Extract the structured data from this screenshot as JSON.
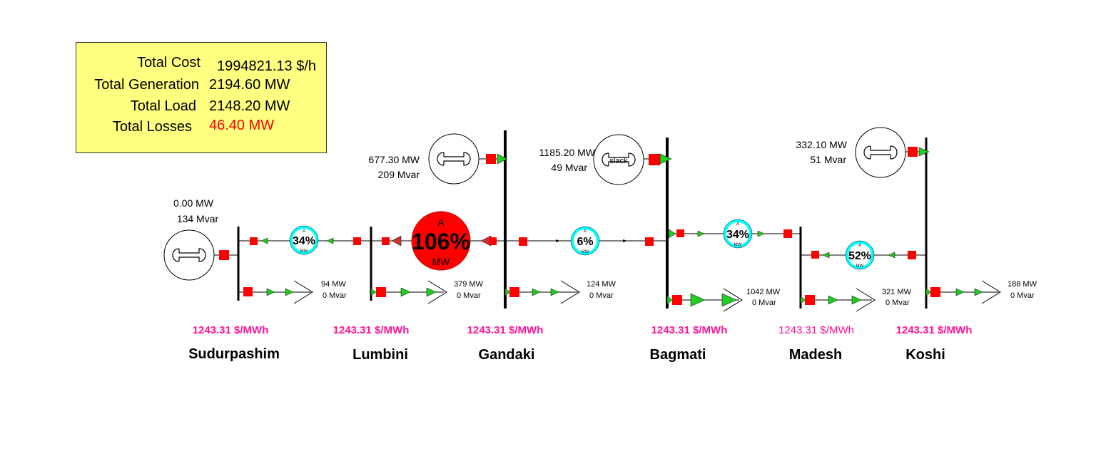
{
  "summary": {
    "total_cost_label": "Total Cost",
    "total_cost_value": "1994821.13 $/h",
    "total_generation_label": "Total Generation",
    "total_generation_value": "2194.60 MW",
    "total_load_label": "Total Load",
    "total_load_value": "2148.20 MW",
    "total_losses_label": "Total Losses",
    "total_losses_value": "46.40 MW"
  },
  "generators": {
    "sudurpashim": {
      "mw": "0.00 MW",
      "mvar": "134 Mvar"
    },
    "gandaki": {
      "mw": "677.30 MW",
      "mvar": "209 Mvar"
    },
    "bagmati": {
      "mw": "1185.20 MW",
      "mvar": "49 Mvar",
      "tag": "slack"
    },
    "koshi": {
      "mw": "332.10 MW",
      "mvar": "51 Mvar"
    }
  },
  "loads": {
    "sudurpashim": {
      "mw": "94 MW",
      "mvar": "0 Mvar"
    },
    "lumbini": {
      "mw": "379 MW",
      "mvar": "0 Mvar"
    },
    "gandaki": {
      "mw": "124 MW",
      "mvar": "0 Mvar"
    },
    "bagmati": {
      "mw": "1042 MW",
      "mvar": "0 Mvar"
    },
    "madesh": {
      "mw": "321 MW",
      "mvar": "0 Mvar"
    },
    "koshi": {
      "mw": "188 MW",
      "mvar": "0 Mvar"
    }
  },
  "lines": {
    "sudur_lumbini": {
      "pct": "34%",
      "top": "A",
      "bottom": "MW"
    },
    "lumbini_gandaki": {
      "pct": "106%",
      "top": "A",
      "bottom": "MW"
    },
    "gandaki_bagmati": {
      "pct": "6%",
      "top": "A",
      "bottom": "MW"
    },
    "bagmati_madesh": {
      "pct": "34%",
      "top": "A",
      "bottom": "MW"
    },
    "madesh_koshi": {
      "pct": "52%",
      "top": "A",
      "bottom": "MW"
    }
  },
  "buses": {
    "sudurpashim": {
      "name": "Sudurpashim",
      "price": "1243.31 $/MWh"
    },
    "lumbini": {
      "name": "Lumbini",
      "price": "1243.31 $/MWh"
    },
    "gandaki": {
      "name": "Gandaki",
      "price": "1243.31 $/MWh"
    },
    "bagmati": {
      "name": "Bagmati",
      "price": "1243.31 $/MWh"
    },
    "madesh": {
      "name": "Madesh",
      "price": "1243.31 $/MWh"
    },
    "koshi": {
      "name": "Koshi",
      "price": "1243.31 $/MWh"
    }
  },
  "colors": {
    "breaker": "#ff0000",
    "flow_arrow": "#22cc22",
    "reverse_arrow": "#cc3333",
    "line_gauge": "#00ffff",
    "overload_gauge": "#ff0000",
    "price_text": "#ff1493",
    "losses_text": "#ff0000",
    "summary_background": "#ffff80"
  }
}
